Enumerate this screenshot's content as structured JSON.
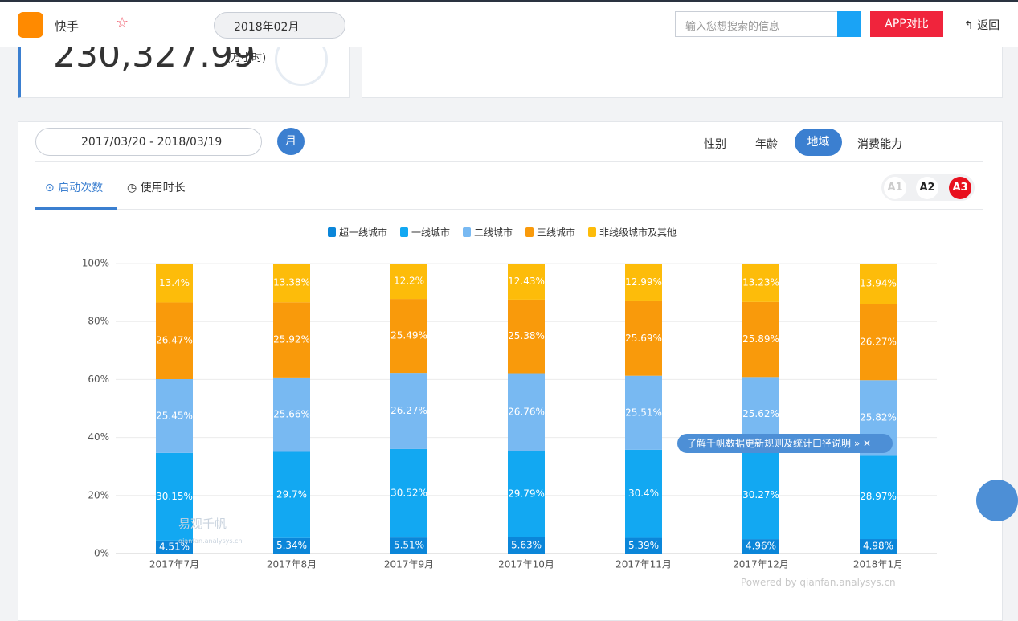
{
  "header": {
    "app_name": "快手",
    "month_picker": "2018年02月",
    "search_placeholder": "输入您想搜索的信息",
    "compare_button": "APP对比",
    "back_button": "返回"
  },
  "summary": {
    "value": "230,327.99",
    "unit": "(万小时)"
  },
  "toolbar": {
    "date_range": "2017/03/20 - 2018/03/19",
    "period": "月",
    "dimension_tabs": [
      "性别",
      "年龄",
      "地域",
      "消费能力"
    ],
    "metric_tabs": [
      "启动次数",
      "使用时长"
    ],
    "levels": [
      "A1",
      "A2",
      "A3"
    ]
  },
  "tooltip": "了解千帆数据更新规则及统计口径说明",
  "watermark": {
    "name": "易观千帆",
    "url": "qianfan.analysys.cn"
  },
  "footer": "Powered by qianfan.analysys.cn",
  "chart_data": {
    "type": "stacked_bar",
    "categories": [
      "2017年7月",
      "2017年8月",
      "2017年9月",
      "2017年10月",
      "2017年11月",
      "2017年12月",
      "2018年1月"
    ],
    "series": [
      {
        "name": "超一线城市",
        "color": "#0b86d9",
        "values": [
          4.51,
          5.34,
          5.51,
          5.63,
          5.39,
          4.96,
          4.98
        ],
        "value_labels": [
          "4.51%",
          "5.34%",
          "5.51%",
          "5.63%",
          "5.39%",
          "4.96%",
          "4.98%"
        ]
      },
      {
        "name": "一线城市",
        "color": "#12a8f2",
        "values": [
          30.15,
          29.7,
          30.52,
          29.79,
          30.4,
          30.27,
          28.97
        ],
        "value_labels": [
          "30.15%",
          "29.7%",
          "30.52%",
          "29.79%",
          "30.4%",
          "30.27%",
          "28.97%"
        ]
      },
      {
        "name": "二线城市",
        "color": "#78b9f2",
        "values": [
          25.45,
          25.66,
          26.27,
          26.76,
          25.51,
          25.62,
          25.82
        ],
        "value_labels": [
          "25.45%",
          "25.66%",
          "26.27%",
          "26.76%",
          "25.51%",
          "25.62%",
          "25.82%"
        ]
      },
      {
        "name": "三线城市",
        "color": "#f99a0b",
        "values": [
          26.47,
          25.92,
          25.49,
          25.38,
          25.69,
          25.89,
          26.27
        ],
        "value_labels": [
          "26.47%",
          "25.92%",
          "25.49%",
          "25.38%",
          "25.69%",
          "25.89%",
          "26.27%"
        ]
      },
      {
        "name": "非线级城市及其他",
        "color": "#fdbc0a",
        "values": [
          13.4,
          13.38,
          12.2,
          12.43,
          12.99,
          13.23,
          13.94
        ],
        "value_labels": [
          "13.4%",
          "13.38%",
          "12.2%",
          "12.43%",
          "12.99%",
          "13.23%",
          "13.94%"
        ]
      }
    ],
    "ylim": [
      0,
      100
    ],
    "yticks": [
      {
        "value": 0,
        "label": "0%"
      },
      {
        "value": 20,
        "label": "20%"
      },
      {
        "value": 40,
        "label": "40%"
      },
      {
        "value": 60,
        "label": "60%"
      },
      {
        "value": 80,
        "label": "80%"
      },
      {
        "value": 100,
        "label": "100%"
      }
    ],
    "grid": true
  }
}
